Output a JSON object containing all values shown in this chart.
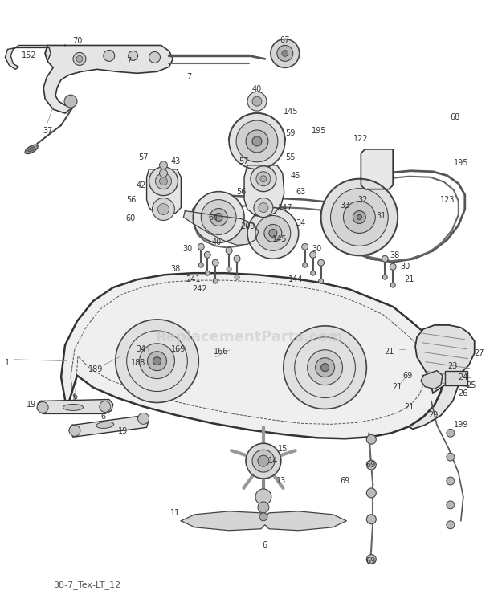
{
  "bg_color": "#ffffff",
  "line_color": "#444444",
  "label_color": "#333333",
  "watermark": "ReplacementParts.com",
  "watermark_color": "#c8c8c8",
  "bottom_text": "38-7_Tex-LT_12",
  "fig_width": 6.2,
  "fig_height": 7.66,
  "dpi": 100
}
